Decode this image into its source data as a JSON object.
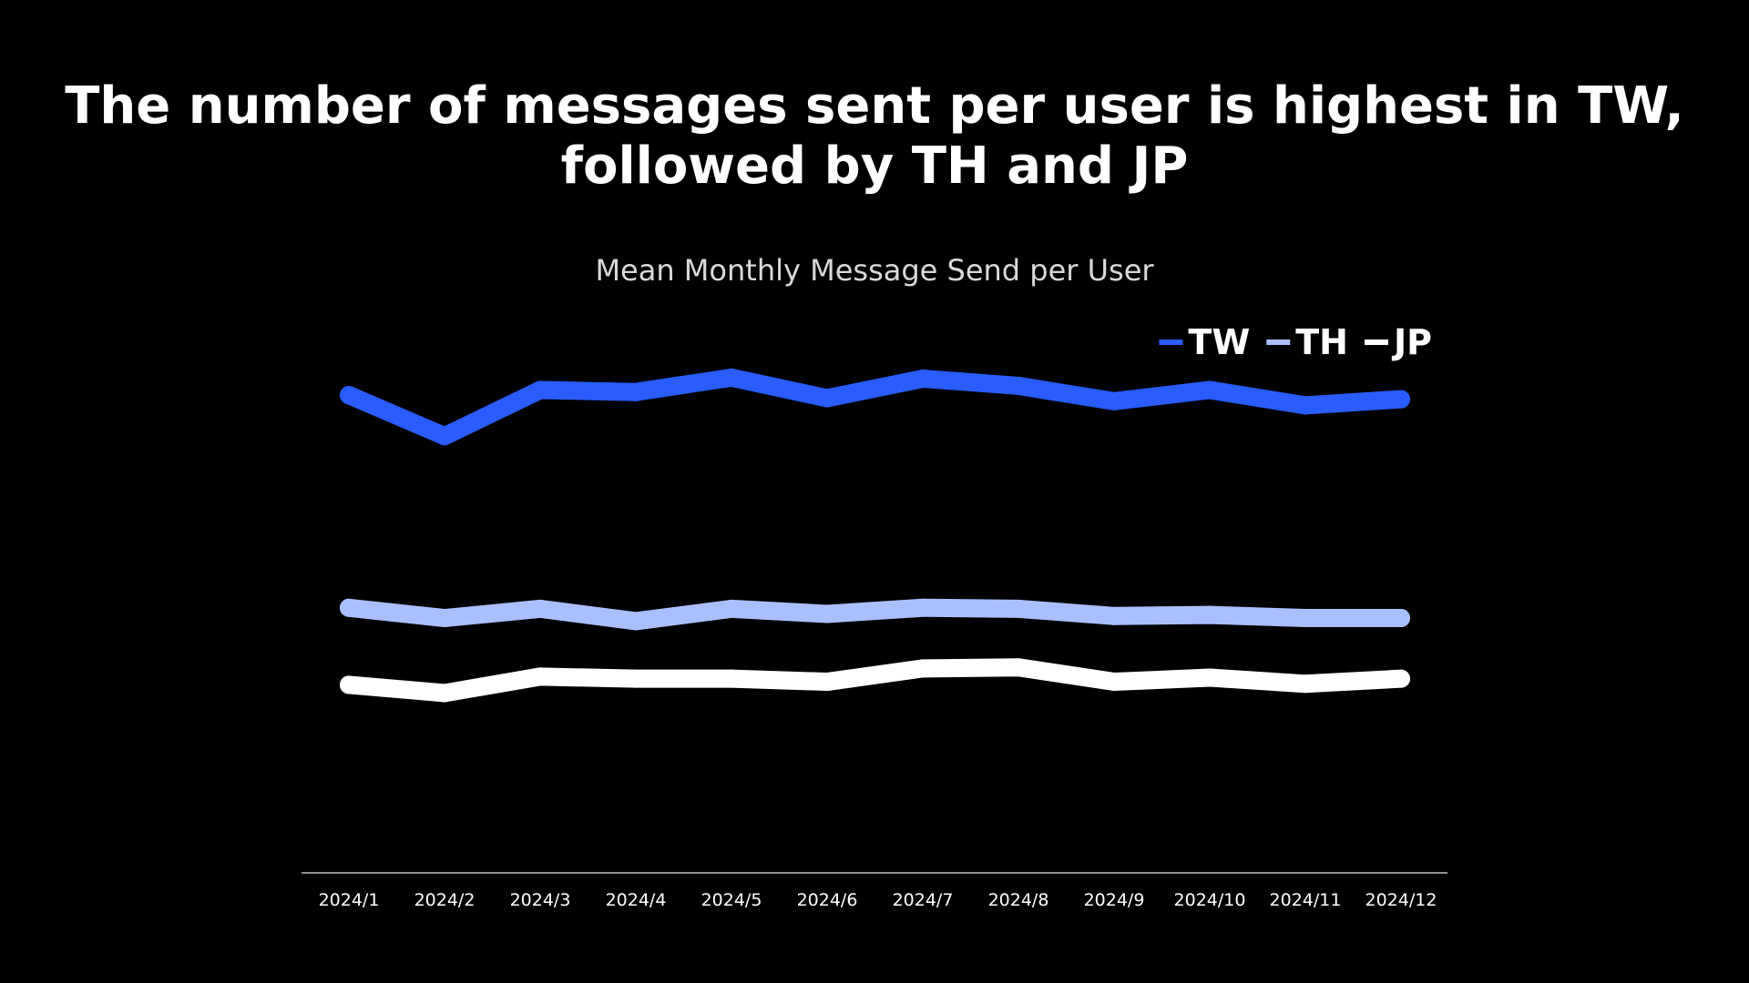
{
  "slide": {
    "title_line1": "The number of messages sent per user is highest in TW,",
    "title_line2": "followed by TH and JP"
  },
  "chart_data": {
    "type": "line",
    "title": "Mean Monthly Message Send per User",
    "xlabel": "",
    "ylabel": "",
    "categories": [
      "2024/1",
      "2024/2",
      "2024/3",
      "2024/4",
      "2024/5",
      "2024/6",
      "2024/7",
      "2024/8",
      "2024/9",
      "2024/10",
      "2024/11",
      "2024/12"
    ],
    "y_axis_shown": false,
    "ylim": [
      0,
      520
    ],
    "grid": false,
    "legend_position": "top-right",
    "series": [
      {
        "name": "TW",
        "color": "#2a5cff",
        "values": [
          465,
          425,
          470,
          468,
          482,
          462,
          481,
          474,
          459,
          470,
          455,
          461
        ]
      },
      {
        "name": "TH",
        "color": "#aabfff",
        "values": [
          258,
          248,
          257,
          245,
          257,
          252,
          258,
          257,
          250,
          251,
          248,
          248
        ]
      },
      {
        "name": "JP",
        "color": "#ffffff",
        "values": [
          183,
          175,
          191,
          189,
          189,
          186,
          199,
          200,
          186,
          190,
          184,
          189
        ]
      }
    ]
  }
}
